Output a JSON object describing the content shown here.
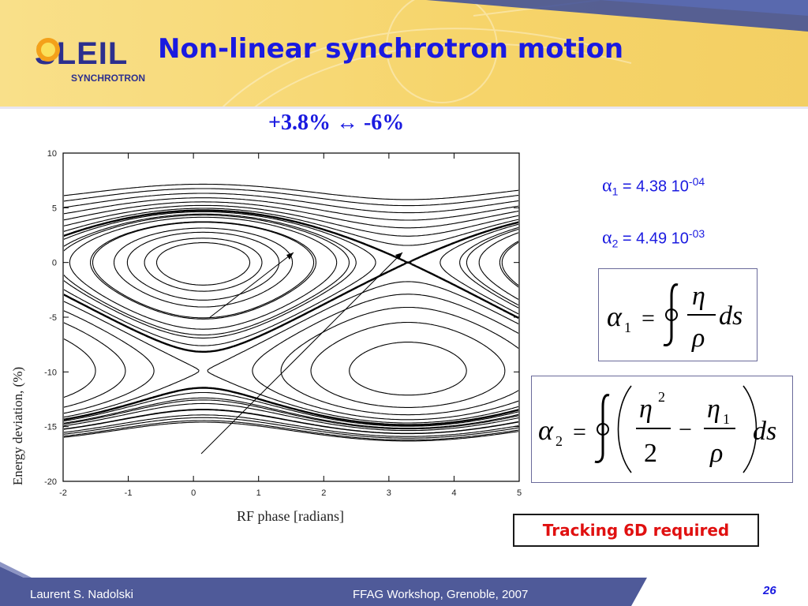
{
  "slide": {
    "logo_text": "S",
    "logo_text_rest": "LEIL",
    "logo_subtitle": "SYNCHROTRON",
    "title": "Non-linear synchrotron motion",
    "annotation": "+3.8% ↔ -6%"
  },
  "alphas": {
    "alpha1": {
      "symbol": "α",
      "sub": "1",
      "value": " = 4.38 10",
      "exp": "-04"
    },
    "alpha2": {
      "symbol": "α",
      "sub": "2",
      "value": " = 4.49 10",
      "exp": "-03"
    }
  },
  "formulas": {
    "f1": {
      "lhs": "α",
      "lhs_sub": "1",
      "eq": "=",
      "num": "η",
      "den": "ρ",
      "ds": "ds"
    },
    "f2": {
      "lhs": "α",
      "lhs_sub": "2",
      "eq": "=",
      "num1": "η",
      "num1_sup": "2",
      "den1": "2",
      "minus": "−",
      "num2": "η",
      "num2_sub": "1",
      "den2": "ρ",
      "ds": "ds"
    }
  },
  "tracking_note": "Tracking 6D required",
  "footer": {
    "author": "Laurent S. Nadolski",
    "event": "FFAG Workshop, Grenoble, 2007",
    "page": "26"
  },
  "colors": {
    "title_blue": "#1a1ae0",
    "banner_yellow": "#f7d774",
    "footer_blue": "#4f5a99",
    "alert_red": "#e01010"
  },
  "chart_data": {
    "type": "line",
    "xlabel": "RF phase [radians]",
    "ylabel": "Energy deviation, (%)",
    "xlim": [
      -2,
      5
    ],
    "ylim": [
      -20,
      10
    ],
    "xticks": [
      -2,
      -1,
      0,
      1,
      2,
      3,
      4,
      5
    ],
    "yticks": [
      10,
      5,
      0,
      -5,
      -10,
      -15,
      -20
    ],
    "grid": false,
    "stable_centers": [
      {
        "x": 0.15,
        "y": 0.0
      },
      {
        "x": 3.0,
        "y": -9.9
      }
    ],
    "saddle_point": {
      "x": 3.0,
      "y": -1.8
    },
    "separatrix_extremes": {
      "upper_at_x": 0.25,
      "upper_y": 4.9,
      "lower_at_x": 0.25,
      "lower_y": -7.4
    },
    "closed_orbit_amplitudes": [
      0.35,
      0.55,
      0.75,
      0.9,
      1.0
    ],
    "open_orbit_offsets_upper": [
      1.1,
      1.25,
      1.45,
      1.7,
      2.0,
      2.35,
      2.7
    ],
    "open_orbit_offsets_lower": [
      1.1,
      1.25,
      1.45,
      1.7,
      2.0,
      2.35
    ]
  }
}
